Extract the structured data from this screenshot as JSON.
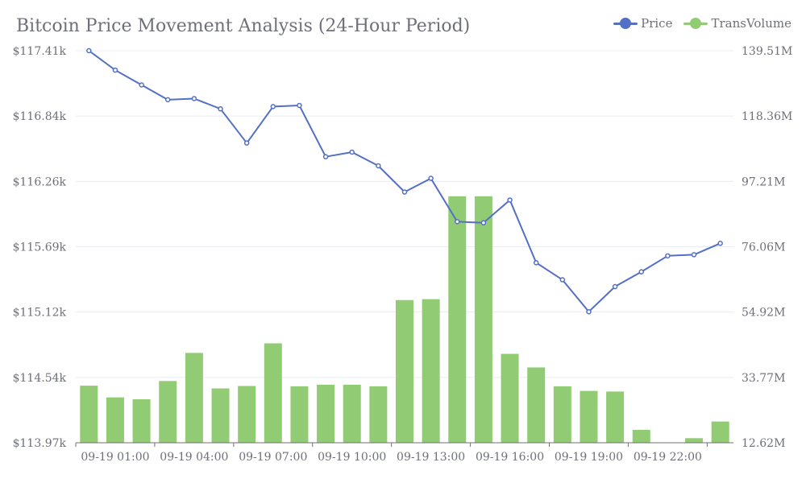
{
  "chart_data": {
    "type": "bar-line",
    "title": "Bitcoin Price Movement Analysis (24-Hour Period)",
    "legend": [
      "Price",
      "TransVolume"
    ],
    "colors": {
      "price": "#5470c6",
      "volume": "#91cc75"
    },
    "x_labels_shown": [
      "09-19 01:00",
      "09-19 04:00",
      "09-19 07:00",
      "09-19 10:00",
      "09-19 13:00",
      "09-19 16:00",
      "09-19 19:00",
      "09-19 22:00"
    ],
    "price_axis": {
      "min": 113.97,
      "max": 117.41,
      "ticks": [
        "$113.97k",
        "$114.54k",
        "$115.12k",
        "$115.69k",
        "$116.26k",
        "$116.84k",
        "$117.41k"
      ]
    },
    "volume_axis": {
      "min": 12.62,
      "max": 139.51,
      "ticks": [
        "12.62M",
        "33.77M",
        "54.92M",
        "76.06M",
        "97.21M",
        "118.36M",
        "139.51M"
      ]
    },
    "price_series": [
      117.41,
      117.24,
      117.11,
      116.98,
      116.99,
      116.9,
      116.6,
      116.92,
      116.93,
      116.48,
      116.52,
      116.4,
      116.17,
      116.29,
      115.91,
      115.9,
      116.1,
      115.55,
      115.4,
      115.12,
      115.34,
      115.47,
      115.61,
      115.62,
      115.72
    ],
    "volume_series": [
      31.1,
      27.3,
      26.7,
      32.6,
      41.7,
      30.2,
      31.0,
      44.8,
      30.9,
      31.4,
      31.4,
      30.9,
      58.8,
      59.1,
      92.4,
      92.4,
      41.4,
      37.0,
      30.9,
      29.4,
      29.2,
      16.8,
      12.62,
      14.1,
      19.5
    ]
  }
}
